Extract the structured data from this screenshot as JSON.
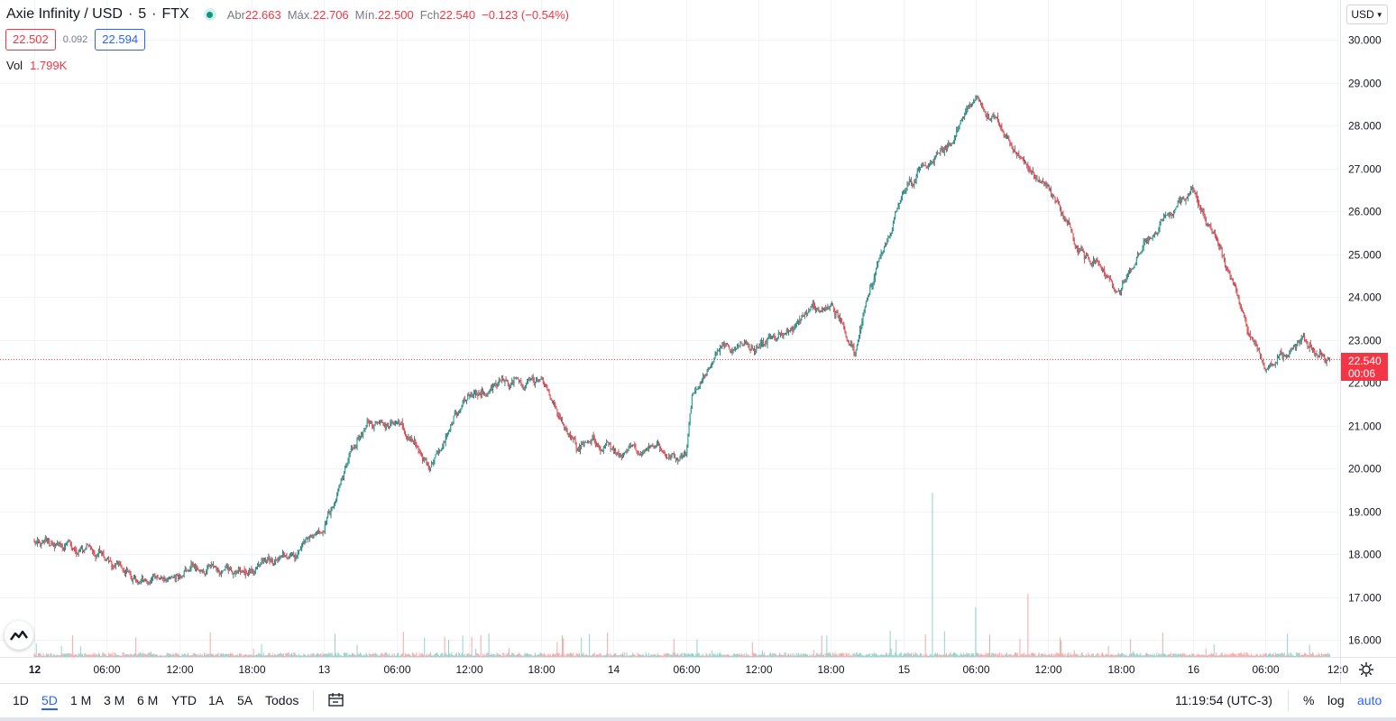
{
  "legend": {
    "symbol": "Axie Infinity / USD",
    "interval": "5",
    "exchange": "FTX",
    "ohlc": [
      {
        "key": "Abr",
        "value": "22.663"
      },
      {
        "key": "Máx.",
        "value": "22.706"
      },
      {
        "key": "Mín.",
        "value": "22.500"
      },
      {
        "key": "Fch",
        "value": "22.540"
      }
    ],
    "change": "−0.123 (−0.54%)"
  },
  "quote": {
    "sell": "22.502",
    "spread": "0.092",
    "buy": "22.594"
  },
  "volume": {
    "label": "Vol",
    "value": "1.799K"
  },
  "currency_button": "USD",
  "price_badge": {
    "price": "22.540",
    "countdown": "00:06"
  },
  "toolbar": {
    "timeframes": [
      "1D",
      "5D",
      "1 M",
      "3 M",
      "6 M",
      "YTD",
      "1A",
      "5A",
      "Todos"
    ],
    "active_timeframe": "5D",
    "clock": "11:19:54 (UTC-3)",
    "percent": "%",
    "log": "log",
    "auto": "auto"
  },
  "colors": {
    "up": "#26a69a",
    "down": "#ef5350",
    "accent": "#2962ff",
    "last_price": "#f23645",
    "grid": "#f0f3fa"
  },
  "chart_data": {
    "type": "candlestick",
    "interval_minutes": 5,
    "y_axis": {
      "range": [
        15.6,
        30.3
      ],
      "ticks": [
        30,
        29,
        28,
        27,
        26,
        25,
        24,
        23,
        22,
        21,
        20,
        19,
        18,
        17,
        16
      ],
      "tick_labels": [
        "30.000",
        "29.000",
        "28.000",
        "27.000",
        "26.000",
        "25.000",
        "24.000",
        "23.000",
        "22.000",
        "21.000",
        "20.000",
        "19.000",
        "18.000",
        "17.000",
        "16.000"
      ]
    },
    "x_axis": {
      "ticks": [
        "12",
        "06:00",
        "12:00",
        "18:00",
        "13",
        "06:00",
        "12:00",
        "18:00",
        "14",
        "06:00",
        "12:00",
        "18:00",
        "15",
        "06:00",
        "12:00",
        "18:00",
        "16",
        "06:00",
        "12:0"
      ],
      "bold_ticks": [
        "12"
      ]
    },
    "last_price": 22.54,
    "price_path": [
      [
        "12 00:00",
        18.3
      ],
      [
        "12 03:00",
        18.3
      ],
      [
        "12 06:00",
        17.9
      ],
      [
        "12 09:00",
        17.4
      ],
      [
        "12 12:00",
        17.5
      ],
      [
        "12 15:00",
        17.6
      ],
      [
        "12 18:00",
        17.7
      ],
      [
        "12 21:00",
        18.0
      ],
      [
        "13 00:00",
        18.5
      ],
      [
        "13 02:00",
        20.2
      ],
      [
        "13 03:30",
        21.1
      ],
      [
        "13 06:00",
        21.0
      ],
      [
        "13 09:00",
        20.1
      ],
      [
        "13 12:00",
        21.8
      ],
      [
        "13 15:00",
        22.0
      ],
      [
        "13 18:00",
        22.0
      ],
      [
        "13 21:00",
        20.6
      ],
      [
        "14 00:00",
        20.4
      ],
      [
        "14 03:00",
        20.4
      ],
      [
        "14 06:00",
        20.4
      ],
      [
        "14 06:30",
        21.8
      ],
      [
        "14 09:00",
        22.8
      ],
      [
        "14 12:00",
        22.8
      ],
      [
        "14 15:00",
        23.4
      ],
      [
        "14 18:00",
        23.8
      ],
      [
        "14 20:00",
        22.8
      ],
      [
        "14 21:00",
        24.0
      ],
      [
        "15 00:00",
        26.5
      ],
      [
        "15 03:00",
        27.3
      ],
      [
        "15 06:00",
        28.8
      ],
      [
        "15 09:00",
        27.5
      ],
      [
        "15 12:00",
        26.5
      ],
      [
        "15 15:00",
        25.0
      ],
      [
        "15 18:00",
        24.2
      ],
      [
        "15 21:00",
        25.5
      ],
      [
        "16 00:00",
        26.6
      ],
      [
        "16 03:00",
        24.6
      ],
      [
        "16 06:00",
        22.2
      ],
      [
        "16 09:00",
        23.0
      ],
      [
        "16 11:20",
        22.54
      ]
    ],
    "volume_spike": {
      "time": "15 02:25",
      "volume_label": ""
    }
  }
}
